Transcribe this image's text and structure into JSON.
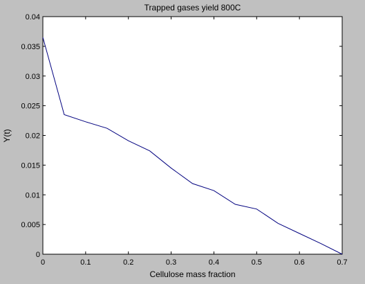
{
  "chart_data": {
    "type": "line",
    "title": "Trapped gases yield 800C",
    "xlabel": "Cellulose mass fraction",
    "ylabel": "Y(t)",
    "xlim": [
      0,
      0.7
    ],
    "ylim": [
      0,
      0.04
    ],
    "grid": false,
    "x_ticks": [
      "0",
      "0.1",
      "0.2",
      "0.3",
      "0.4",
      "0.5",
      "0.6",
      "0.7"
    ],
    "y_ticks": [
      "0",
      "0.005",
      "0.01",
      "0.015",
      "0.02",
      "0.025",
      "0.03",
      "0.035",
      "0.04"
    ],
    "series": [
      {
        "color": "#00007f",
        "x": [
          0,
          0.05,
          0.1,
          0.15,
          0.2,
          0.25,
          0.3,
          0.35,
          0.4,
          0.45,
          0.5,
          0.55,
          0.6,
          0.65,
          0.7
        ],
        "y": [
          0.0365,
          0.0235,
          0.0223,
          0.0212,
          0.0191,
          0.0174,
          0.0145,
          0.0119,
          0.0107,
          0.0084,
          0.0076,
          0.0052,
          0.0035,
          0.0018,
          0.0
        ]
      }
    ]
  }
}
